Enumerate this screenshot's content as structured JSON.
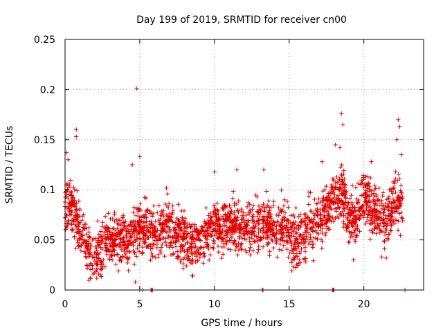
{
  "chart_data": {
    "type": "scatter",
    "title": "Day 199 of 2019, SRMTID for receiver cn00",
    "xlabel": "GPS time / hours",
    "ylabel": "SRMTID / TECUs",
    "xlim": [
      0,
      24
    ],
    "ylim": [
      0,
      0.25
    ],
    "xticks": [
      0,
      5,
      10,
      15,
      20
    ],
    "xtick_labels": [
      "0",
      "5",
      "10",
      "15",
      "20"
    ],
    "yticks": [
      0,
      0.05,
      0.1,
      0.15,
      0.2,
      0.25
    ],
    "ytick_labels": [
      "0",
      "0.05",
      "0.1",
      "0.15",
      "0.2",
      "0.25"
    ],
    "grid": true,
    "marker": "+",
    "color": "#e00000",
    "series": [
      {
        "name": "SRMTID",
        "trend": {
          "x": [
            0,
            0.3,
            0.6,
            1.0,
            1.4,
            1.8,
            2.2,
            2.6,
            3.0,
            3.5,
            4.0,
            4.5,
            5.0,
            5.5,
            6.0,
            6.5,
            7.0,
            7.5,
            8.0,
            8.5,
            9.0,
            9.5,
            10.0,
            10.5,
            11.0,
            11.5,
            12.0,
            12.5,
            13.0,
            13.5,
            14.0,
            14.5,
            15.0,
            15.5,
            16.0,
            16.5,
            17.0,
            17.5,
            18.0,
            18.5,
            19.0,
            19.5,
            20.0,
            20.5,
            21.0,
            21.5,
            22.0,
            22.5
          ],
          "y": [
            0.085,
            0.09,
            0.075,
            0.06,
            0.045,
            0.03,
            0.035,
            0.045,
            0.05,
            0.055,
            0.05,
            0.055,
            0.065,
            0.06,
            0.055,
            0.06,
            0.065,
            0.055,
            0.055,
            0.045,
            0.05,
            0.055,
            0.065,
            0.06,
            0.065,
            0.06,
            0.065,
            0.06,
            0.07,
            0.065,
            0.06,
            0.065,
            0.055,
            0.045,
            0.055,
            0.065,
            0.07,
            0.075,
            0.09,
            0.1,
            0.075,
            0.07,
            0.095,
            0.08,
            0.075,
            0.07,
            0.09,
            0.085
          ]
        },
        "scatter_spread": 0.022,
        "highlights": [
          {
            "x": 4.8,
            "y": 0.201
          },
          {
            "x": 0.75,
            "y": 0.16
          },
          {
            "x": 0.75,
            "y": 0.153
          },
          {
            "x": 18.5,
            "y": 0.176
          },
          {
            "x": 18.6,
            "y": 0.165
          },
          {
            "x": 22.3,
            "y": 0.17
          },
          {
            "x": 22.4,
            "y": 0.163
          },
          {
            "x": 22.2,
            "y": 0.15
          },
          {
            "x": 22.5,
            "y": 0.135
          },
          {
            "x": 0.1,
            "y": 0.137
          },
          {
            "x": 0.2,
            "y": 0.13
          },
          {
            "x": 18.1,
            "y": 0.145
          },
          {
            "x": 18.4,
            "y": 0.142
          },
          {
            "x": 4.5,
            "y": 0.125
          },
          {
            "x": 5.0,
            "y": 0.133
          },
          {
            "x": 10.0,
            "y": 0.118
          },
          {
            "x": 11.5,
            "y": 0.12
          },
          {
            "x": 13.3,
            "y": 0.12
          },
          {
            "x": 17.2,
            "y": 0.128
          },
          {
            "x": 20.5,
            "y": 0.128
          },
          {
            "x": 4.7,
            "y": 0.008
          },
          {
            "x": 1.7,
            "y": 0.012
          },
          {
            "x": 2.4,
            "y": 0.015
          },
          {
            "x": 15.2,
            "y": 0.03
          },
          {
            "x": 19.3,
            "y": 0.03
          },
          {
            "x": 21.2,
            "y": 0.033
          }
        ],
        "zero_points": [
          {
            "x": 5.0,
            "y": 0
          },
          {
            "x": 5.2,
            "y": 0
          },
          {
            "x": 5.75,
            "y": 0
          },
          {
            "x": 5.8,
            "y": 0
          },
          {
            "x": 5.85,
            "y": 0
          },
          {
            "x": 13.2,
            "y": 0
          },
          {
            "x": 13.25,
            "y": 0
          },
          {
            "x": 17.9,
            "y": 0
          },
          {
            "x": 17.95,
            "y": 0
          },
          {
            "x": 18.0,
            "y": 0
          },
          {
            "x": 22.75,
            "y": 0
          }
        ],
        "time_range": [
          0.0,
          22.6
        ],
        "sample_count": 2400
      }
    ]
  }
}
